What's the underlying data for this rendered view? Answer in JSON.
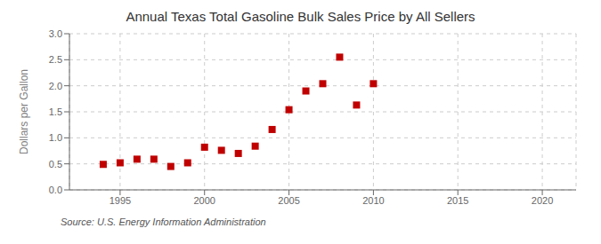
{
  "chart_data": {
    "type": "scatter",
    "title": "Annual Texas Total Gasoline Bulk Sales Price by All Sellers",
    "y_label": "Dollars per Gallon",
    "annotations": [
      "Source: U.S. Energy Information Administration"
    ],
    "x": [
      1994,
      1995,
      1996,
      1997,
      1998,
      1999,
      2000,
      2001,
      2002,
      2003,
      2004,
      2005,
      2006,
      2007,
      2008,
      2009,
      2010
    ],
    "values": [
      0.49,
      0.52,
      0.59,
      0.59,
      0.45,
      0.52,
      0.82,
      0.76,
      0.7,
      0.84,
      1.16,
      1.54,
      1.9,
      2.04,
      2.55,
      1.63,
      2.04
    ],
    "color": "#c00000",
    "marker": "square",
    "xlim": [
      1992,
      2022
    ],
    "ylim": [
      0.0,
      3.0
    ],
    "xticks": [
      1995,
      2000,
      2005,
      2010,
      2015,
      2020
    ],
    "yticks": [
      {
        "value": 0.0,
        "label": "0.0"
      },
      {
        "value": 0.5,
        "label": "0.5"
      },
      {
        "value": 1.0,
        "label": "1.0"
      },
      {
        "value": 1.5,
        "label": "1.5"
      },
      {
        "value": 2.0,
        "label": "2.0"
      },
      {
        "value": 2.5,
        "label": "2.5"
      },
      {
        "value": 3.0,
        "label": "3.0"
      }
    ],
    "grid": true
  }
}
